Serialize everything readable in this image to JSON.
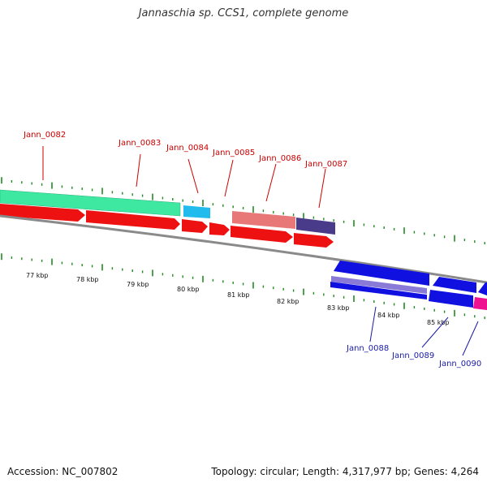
{
  "title": "Jannaschia sp. CCS1, complete genome",
  "accession": "Accession: NC_007802",
  "summary": "Topology: circular; Length: 4,317,977 bp; Genes: 4,264",
  "colors": {
    "forward_label": "#cc0000",
    "reverse_label": "#1a1aa6",
    "tick": "#228b22",
    "backbone": "#888888"
  },
  "scale_labels": [
    "77 kbp",
    "78 kbp",
    "79 kbp",
    "80 kbp",
    "81 kbp",
    "82 kbp",
    "83 kbp",
    "84 kbp",
    "85 kbp"
  ],
  "genes_top": [
    {
      "label": "Jann_0082",
      "color": "#3ee8a0"
    },
    {
      "label": "Jann_0083",
      "color": "#3ee8a0"
    },
    {
      "label": "Jann_0084",
      "color": "#22bbee"
    },
    {
      "label": "Jann_0085",
      "color": "#ffffff"
    },
    {
      "label": "Jann_0086",
      "color": "#e87878"
    },
    {
      "label": "Jann_0087",
      "color": "#4a3a8a"
    }
  ],
  "genes_bottom": [
    {
      "label": "Jann_0088",
      "color": "#1010e0"
    },
    {
      "label": "Jann_0089",
      "color": "#1010e0"
    },
    {
      "label": "Jann_0090",
      "color": "#ee1190"
    }
  ]
}
